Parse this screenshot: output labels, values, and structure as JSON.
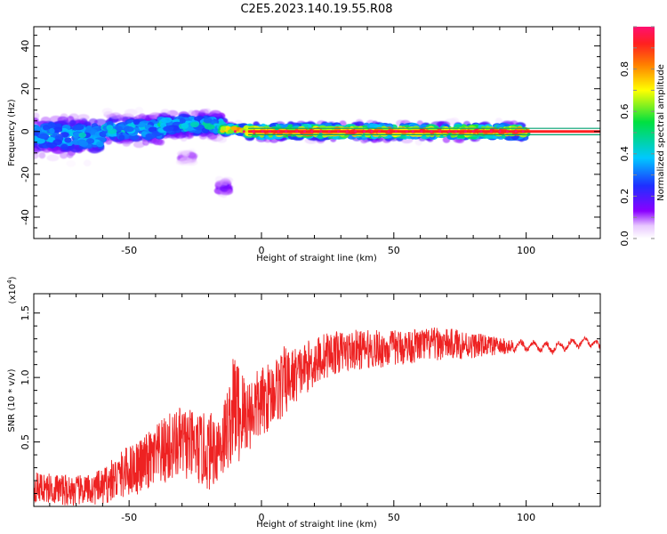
{
  "figure": {
    "title": "C2E5.2023.140.19.55.R08"
  },
  "chart_data": [
    {
      "type": "heatmap",
      "xlabel": "Height of straight line (km)",
      "ylabel": "Frequency (Hz)",
      "xlim": [
        -86,
        128
      ],
      "ylim": [
        -50,
        49
      ],
      "xticks": [
        -50,
        0,
        50,
        100
      ],
      "yticks": [
        -40,
        -20,
        0,
        20,
        40
      ],
      "colorbar": {
        "label": "Normalized spectral amplitude",
        "range": [
          0,
          1
        ],
        "ticks": [
          0.0,
          0.2,
          0.4,
          0.6,
          0.8
        ],
        "tick_labels": [
          "0.0",
          "0.2",
          "0.4",
          "0.6",
          "0.8"
        ]
      },
      "center_line_hz": 0,
      "band_edges_hz": [
        -1.5,
        1.5
      ],
      "spectral_features": [
        {
          "x_range": [
            -86,
            -60
          ],
          "f_center": -2,
          "f_spread": 8,
          "peak": 0.45
        },
        {
          "x_range": [
            -60,
            -38
          ],
          "f_center": 1,
          "f_spread": 6,
          "peak": 0.45
        },
        {
          "x_range": [
            -38,
            -15
          ],
          "f_center": 3,
          "f_spread": 5,
          "peak": 0.5
        },
        {
          "x_range": [
            -15,
            -5
          ],
          "f_center": 1,
          "f_spread": 2,
          "peak": 0.85
        },
        {
          "x_range": [
            -5,
            100
          ],
          "f_center": 0,
          "f_spread": 3,
          "peak": 1.0
        },
        {
          "x_range": [
            -16,
            -13
          ],
          "f_center": -26,
          "f_spread": 3,
          "peak": 0.2
        },
        {
          "x_range": [
            -30,
            -26
          ],
          "f_center": -12,
          "f_spread": 2,
          "peak": 0.15
        }
      ]
    },
    {
      "type": "line",
      "xlabel": "Height of straight line (km)",
      "ylabel": "SNR (10 * v/v)",
      "multiplier_label": "(x10",
      "multiplier_exp": "4",
      "multiplier_close": ")",
      "xlim": [
        -86,
        128
      ],
      "ylim": [
        0,
        1.65
      ],
      "xticks": [
        -50,
        0,
        50,
        100
      ],
      "yticks": [
        0.5,
        1.0,
        1.5
      ],
      "ytick_labels": [
        "0.5",
        "1.0",
        "1.5"
      ],
      "color": "#ee2222",
      "series": [
        {
          "x": [
            -86,
            -80,
            -75,
            -70,
            -65,
            -60,
            -55,
            -50,
            -45,
            -40,
            -35,
            -30,
            -25,
            -20,
            -15,
            -12,
            -10,
            -8,
            -5,
            0,
            5,
            8,
            10,
            15,
            20,
            25,
            30,
            35,
            40,
            45,
            50,
            55,
            60,
            65,
            70,
            75,
            80,
            85,
            90,
            95,
            100,
            105,
            110,
            115,
            120,
            125,
            128
          ],
          "values": [
            0.15,
            0.14,
            0.13,
            0.12,
            0.13,
            0.15,
            0.22,
            0.28,
            0.32,
            0.38,
            0.45,
            0.5,
            0.45,
            0.42,
            0.5,
            0.65,
            0.8,
            0.7,
            0.72,
            0.8,
            0.9,
            0.95,
            0.98,
            1.05,
            1.12,
            1.18,
            1.2,
            1.21,
            1.22,
            1.22,
            1.23,
            1.24,
            1.25,
            1.26,
            1.26,
            1.26,
            1.25,
            1.25,
            1.24,
            1.24,
            1.25,
            1.24,
            1.23,
            1.25,
            1.27,
            1.28,
            1.22
          ],
          "noise_amplitude": [
            0.12,
            0.12,
            0.12,
            0.12,
            0.12,
            0.14,
            0.18,
            0.2,
            0.22,
            0.25,
            0.28,
            0.28,
            0.28,
            0.3,
            0.3,
            0.35,
            0.45,
            0.4,
            0.3,
            0.28,
            0.25,
            0.3,
            0.25,
            0.2,
            0.2,
            0.18,
            0.16,
            0.16,
            0.15,
            0.15,
            0.14,
            0.14,
            0.13,
            0.13,
            0.12,
            0.12,
            0.1,
            0.08,
            0.07,
            0.05,
            0.04,
            0.04,
            0.04,
            0.04,
            0.04,
            0.03,
            0.03
          ]
        }
      ]
    }
  ]
}
